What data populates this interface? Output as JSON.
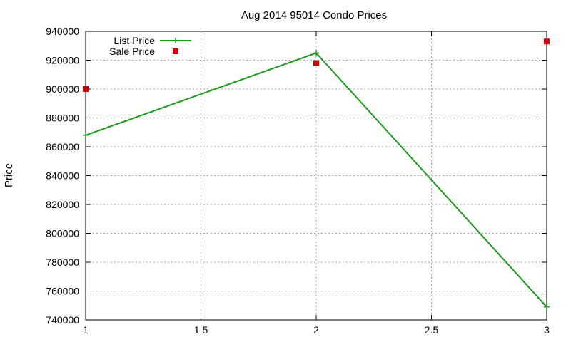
{
  "chart_data": {
    "type": "line",
    "title": "Aug 2014 95014 Condo Prices",
    "xlabel": "",
    "ylabel": "Price",
    "xlim": [
      1,
      3
    ],
    "ylim": [
      740000,
      940000
    ],
    "x_ticks": [
      1,
      1.5,
      2,
      2.5,
      3
    ],
    "x_tick_labels": [
      "1",
      "1.5",
      "2",
      "2.5",
      "3"
    ],
    "y_ticks": [
      740000,
      760000,
      780000,
      800000,
      820000,
      840000,
      860000,
      880000,
      900000,
      920000,
      940000
    ],
    "y_tick_labels": [
      "740000",
      "760000",
      "780000",
      "800000",
      "820000",
      "840000",
      "860000",
      "880000",
      "900000",
      "920000",
      "940000"
    ],
    "grid": true,
    "legend_position": "top-left",
    "series": [
      {
        "name": "List Price",
        "style": "line-plus",
        "color": "#1a9c1a",
        "x": [
          1,
          2,
          3
        ],
        "values": [
          868000,
          925000,
          749000
        ]
      },
      {
        "name": "Sale Price",
        "style": "square-points",
        "color": "#cc0000",
        "x": [
          1,
          2,
          3
        ],
        "values": [
          900000,
          918000,
          933000
        ]
      }
    ]
  }
}
